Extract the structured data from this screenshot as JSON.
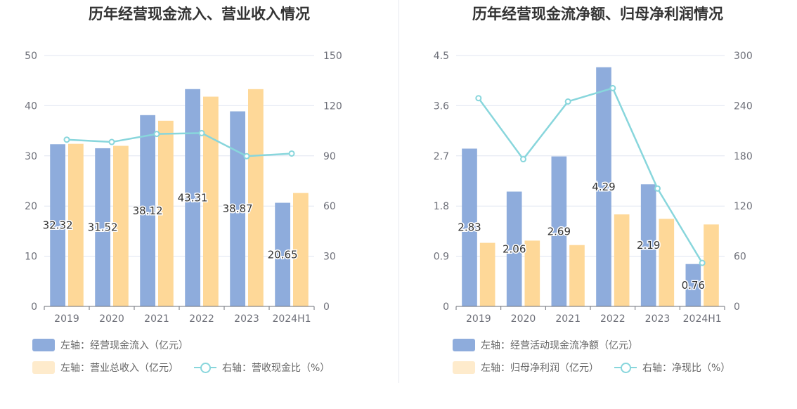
{
  "chart_data": [
    {
      "type": "bar",
      "title": "历年经营现金流入、营业收入情况",
      "categories": [
        "2019",
        "2020",
        "2021",
        "2022",
        "2023",
        "2024H1"
      ],
      "left_axis": {
        "ylim": [
          0,
          50
        ],
        "ticks": [
          "0",
          "10",
          "20",
          "30",
          "40",
          "50"
        ]
      },
      "right_axis": {
        "ylim": [
          0,
          150
        ],
        "ticks": [
          "0",
          "30",
          "60",
          "90",
          "120",
          "150"
        ]
      },
      "series": [
        {
          "name": "左轴：经营现金流入（亿元）",
          "kind": "bar",
          "axis": "left",
          "color": "#8eacdc",
          "values": [
            32.32,
            31.52,
            38.12,
            43.31,
            38.87,
            20.65
          ],
          "labels": [
            "32.32",
            "31.52",
            "38.12",
            "43.31",
            "38.87",
            "20.65"
          ]
        },
        {
          "name": "左轴：营业总收入（亿元）",
          "kind": "bar",
          "axis": "left",
          "color": "#fed898",
          "values": [
            32.4,
            32.0,
            37.0,
            41.8,
            43.3,
            22.6
          ]
        },
        {
          "name": "右轴：营收现金比（%）",
          "kind": "line",
          "axis": "right",
          "color": "#88d6dc",
          "values": [
            99.7,
            98.3,
            103.1,
            103.6,
            89.8,
            91.4
          ]
        }
      ],
      "grid": true,
      "legend": "bottom"
    },
    {
      "type": "bar",
      "title": "历年经营现金流净额、归母净利润情况",
      "categories": [
        "2019",
        "2020",
        "2021",
        "2022",
        "2023",
        "2024H1"
      ],
      "left_axis": {
        "ylim": [
          0,
          4.5
        ],
        "ticks": [
          "0",
          "0.9",
          "1.8",
          "2.7",
          "3.6",
          "4.5"
        ]
      },
      "right_axis": {
        "ylim": [
          0,
          300
        ],
        "ticks": [
          "0",
          "60",
          "120",
          "180",
          "240",
          "300"
        ]
      },
      "series": [
        {
          "name": "左轴：经营活动现金流净额（亿元）",
          "kind": "bar",
          "axis": "left",
          "color": "#8eacdc",
          "values": [
            2.83,
            2.06,
            2.69,
            4.29,
            2.19,
            0.76
          ],
          "labels": [
            "2.83",
            "2.06",
            "2.69",
            "4.29",
            "2.19",
            "0.76"
          ]
        },
        {
          "name": "左轴：归母净利润（亿元）",
          "kind": "bar",
          "axis": "left",
          "color": "#fed898",
          "values": [
            1.14,
            1.18,
            1.1,
            1.65,
            1.57,
            1.47
          ]
        },
        {
          "name": "右轴：净现比（%）",
          "kind": "line",
          "axis": "right",
          "color": "#88d6dc",
          "values": [
            249,
            176,
            245,
            261,
            141,
            52
          ]
        }
      ],
      "grid": true,
      "legend": "bottom"
    }
  ]
}
